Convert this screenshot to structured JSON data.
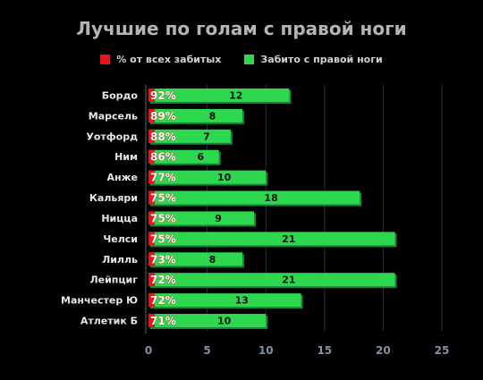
{
  "chart_data": {
    "type": "bar",
    "orientation": "horizontal",
    "title": "Лучшие по голам с правой ноги",
    "legend": {
      "placement": "top",
      "items": [
        {
          "label": "% от всех забитых",
          "color": "#e8141b"
        },
        {
          "label": "Забито с правой ноги",
          "color": "#2ed84e"
        }
      ]
    },
    "categories": [
      "Бордо",
      "Марсель",
      "Уотфорд",
      "Ним",
      "Анже",
      "Кальяри",
      "Ницца",
      "Челси",
      "Лилль",
      "Лейпциг",
      "Манчестер Ю",
      "Атлетик Б"
    ],
    "series": [
      {
        "name": "Забито с правой ноги",
        "color": "#2ed84e",
        "values": [
          12,
          8,
          7,
          6,
          10,
          18,
          9,
          21,
          8,
          21,
          13,
          10
        ]
      },
      {
        "name": "% от всех забитых",
        "color": "#e8141b",
        "values": [
          92,
          89,
          88,
          86,
          77,
          75,
          75,
          75,
          73,
          72,
          72,
          71
        ],
        "labels": [
          "92%",
          "89%",
          "88%",
          "86%",
          "77%",
          "75%",
          "75%",
          "75%",
          "73%",
          "72%",
          "72%",
          "71%"
        ]
      }
    ],
    "xlim": [
      0,
      25
    ],
    "xticks": [
      "0",
      "5",
      "10",
      "15",
      "20",
      "25"
    ],
    "grid": true
  }
}
